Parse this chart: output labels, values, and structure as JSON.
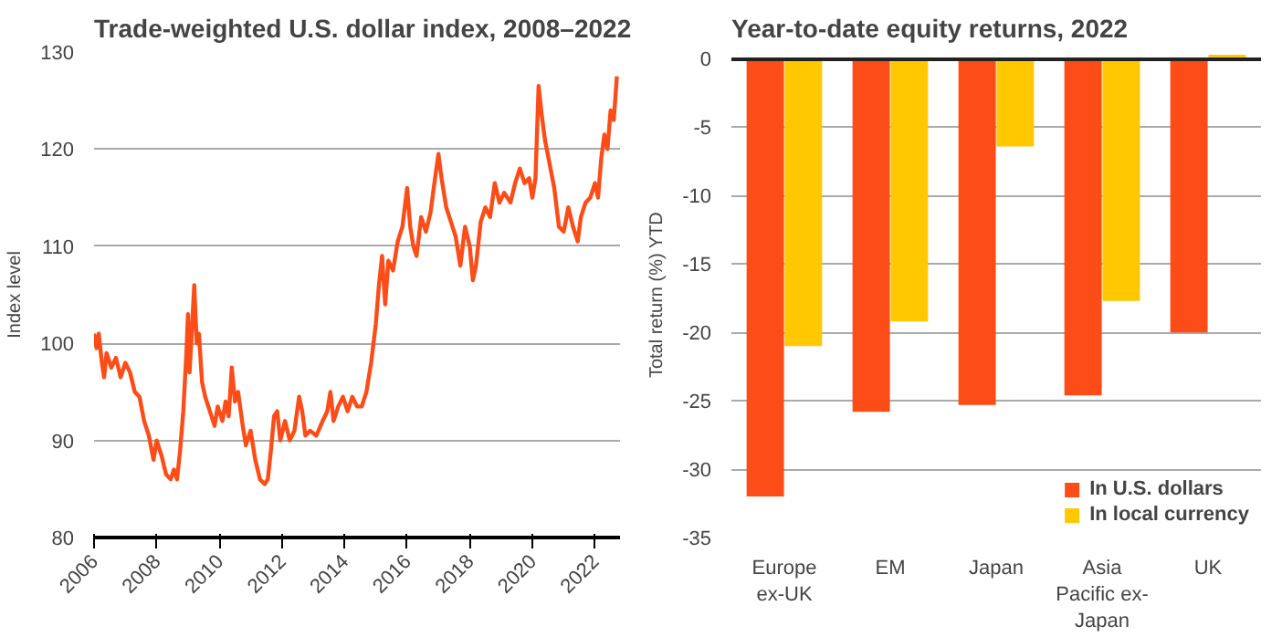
{
  "chart_data": [
    {
      "type": "line",
      "title": "Trade-weighted U.S. dollar index, 2008–2022",
      "ylabel": "Index level",
      "x": [
        2006.0,
        2006.08,
        2006.15,
        2006.25,
        2006.32,
        2006.4,
        2006.55,
        2006.7,
        2006.85,
        2007.0,
        2007.15,
        2007.3,
        2007.45,
        2007.6,
        2007.75,
        2007.9,
        2008.0,
        2008.15,
        2008.3,
        2008.45,
        2008.55,
        2008.65,
        2008.75,
        2008.85,
        2008.95,
        2009.0,
        2009.05,
        2009.12,
        2009.2,
        2009.28,
        2009.35,
        2009.45,
        2009.55,
        2009.7,
        2009.85,
        2009.95,
        2010.1,
        2010.2,
        2010.3,
        2010.4,
        2010.5,
        2010.6,
        2010.75,
        2010.85,
        2011.0,
        2011.15,
        2011.3,
        2011.45,
        2011.55,
        2011.65,
        2011.75,
        2011.85,
        2011.95,
        2012.1,
        2012.25,
        2012.4,
        2012.55,
        2012.65,
        2012.75,
        2012.9,
        2013.1,
        2013.3,
        2013.45,
        2013.55,
        2013.65,
        2013.8,
        2013.95,
        2014.1,
        2014.25,
        2014.4,
        2014.55,
        2014.7,
        2014.85,
        2015.0,
        2015.1,
        2015.2,
        2015.3,
        2015.4,
        2015.55,
        2015.7,
        2015.85,
        2016.0,
        2016.1,
        2016.2,
        2016.3,
        2016.45,
        2016.6,
        2016.75,
        2016.85,
        2017.0,
        2017.1,
        2017.25,
        2017.4,
        2017.55,
        2017.7,
        2017.85,
        2018.0,
        2018.1,
        2018.2,
        2018.35,
        2018.5,
        2018.65,
        2018.8,
        2018.95,
        2019.1,
        2019.3,
        2019.45,
        2019.6,
        2019.75,
        2019.9,
        2020.0,
        2020.1,
        2020.2,
        2020.3,
        2020.4,
        2020.55,
        2020.7,
        2020.85,
        2021.0,
        2021.15,
        2021.3,
        2021.45,
        2021.55,
        2021.7,
        2021.85,
        2022.0,
        2022.1,
        2022.2,
        2022.3,
        2022.4,
        2022.5,
        2022.6,
        2022.7
      ],
      "series": [
        {
          "color": "#fc4c17",
          "values": [
            101,
            99.5,
            101,
            98,
            96.5,
            99,
            97.5,
            98.5,
            96.5,
            98,
            97,
            95,
            94.5,
            92,
            90.5,
            88,
            90,
            88.5,
            86.5,
            86,
            87,
            86,
            89,
            93,
            99,
            103,
            97,
            101,
            106,
            100,
            101,
            96,
            94.5,
            93,
            91.5,
            93.5,
            92,
            94,
            92.5,
            97.5,
            94,
            95,
            91.5,
            89.5,
            91,
            88,
            86,
            85.5,
            86,
            89,
            92.5,
            93,
            90,
            92,
            90,
            91,
            94.5,
            93,
            90.5,
            91,
            90.5,
            92,
            93,
            95,
            92,
            93.5,
            94.5,
            93,
            94.5,
            93.5,
            93.5,
            95,
            98,
            102,
            106,
            109,
            104,
            108.5,
            107.5,
            110.5,
            112,
            116,
            112,
            110,
            109,
            113,
            111.5,
            113.5,
            116,
            119.5,
            117,
            114,
            112.5,
            111,
            108,
            112,
            110,
            106.5,
            108,
            112.5,
            114,
            113,
            116.5,
            114.5,
            115.5,
            114.5,
            116.5,
            118,
            116.5,
            117,
            115,
            117,
            126.5,
            123.5,
            121,
            118.5,
            116,
            112,
            111.5,
            114,
            112,
            110.5,
            113,
            114.5,
            115,
            116.5,
            115,
            119,
            121.5,
            120,
            124,
            123,
            127.5
          ]
        }
      ],
      "xlim": [
        2006,
        2022.8
      ],
      "xticks": [
        2006,
        2008,
        2010,
        2012,
        2014,
        2016,
        2018,
        2020,
        2022
      ],
      "ylim": [
        80,
        130
      ],
      "yticks": [
        80,
        90,
        100,
        110,
        120,
        130
      ],
      "grid": "y",
      "legend": false,
      "marker": "none",
      "line_style": "solid"
    },
    {
      "type": "bar",
      "title": "Year-to-date equity returns, 2022",
      "ylabel": "Total return (%) YTD",
      "categories": [
        "Europe\nex-UK",
        "EM",
        "Japan",
        "Asia\nPacific ex-\nJapan",
        "UK"
      ],
      "series": [
        {
          "name": "In U.S. dollars",
          "color": "#fc4c17",
          "values": [
            -32,
            -25.8,
            -25.3,
            -24.6,
            -20
          ]
        },
        {
          "name": "In local currency",
          "color": "#ffc800",
          "values": [
            -21,
            -19.2,
            -6.4,
            -17.7,
            0.3
          ]
        }
      ],
      "ylim": [
        -35,
        0.5
      ],
      "yticks": [
        -35,
        -30,
        -25,
        -20,
        -15,
        -10,
        -5,
        0
      ],
      "grid": "y",
      "legend": "bottom right"
    }
  ]
}
